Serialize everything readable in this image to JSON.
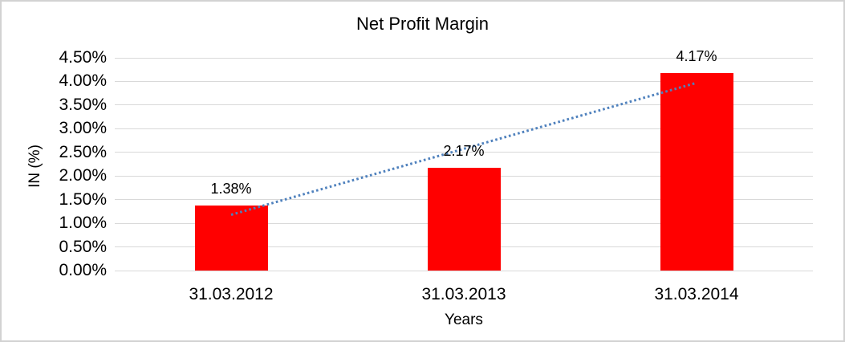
{
  "chart_data": {
    "type": "bar",
    "title": "Net Profit Margin",
    "categories": [
      "31.03.2012",
      "31.03.2013",
      "31.03.2014"
    ],
    "values": [
      1.38,
      2.17,
      4.17
    ],
    "value_labels": [
      "1.38%",
      "2.17%",
      "4.17%"
    ],
    "xlabel": "Years",
    "ylabel": "IN (%)",
    "ylim": [
      0,
      4.5
    ],
    "ytick_step": 0.5,
    "ytick_labels": [
      "0.00%",
      "0.50%",
      "1.00%",
      "1.50%",
      "2.00%",
      "2.50%",
      "3.00%",
      "3.50%",
      "4.00%",
      "4.50%"
    ],
    "grid": true,
    "legend": "none",
    "bar_color": "#ff0000",
    "gridline_color": "#d9d9d9",
    "text_color": "#000000",
    "trendline": {
      "type": "linear",
      "style": "dotted",
      "color": "#4f81bd",
      "start_value": 1.18,
      "end_value": 3.97
    }
  }
}
